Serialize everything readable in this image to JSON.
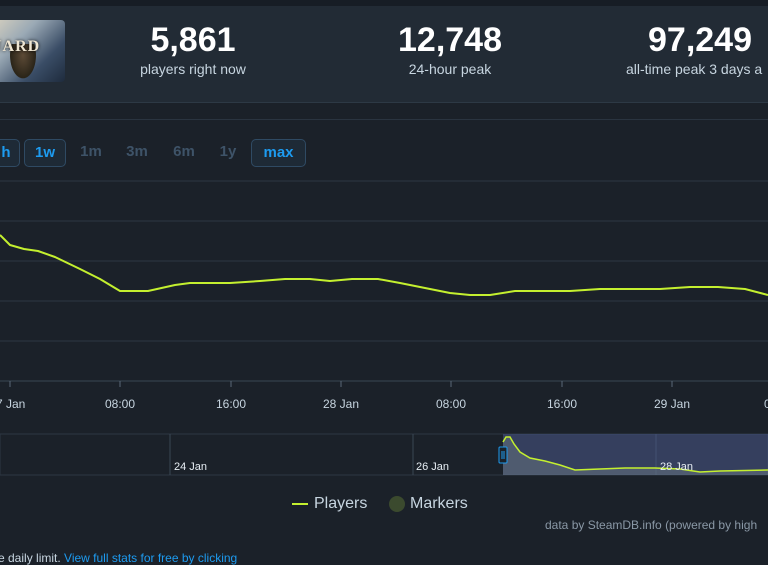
{
  "game": {
    "logo_text": "UARD"
  },
  "stats": [
    {
      "value": "5,861",
      "label": "players right now"
    },
    {
      "value": "12,748",
      "label": "24-hour peak"
    },
    {
      "value": "97,249",
      "label": "all-time peak 3 days a"
    }
  ],
  "zoom_buttons": [
    {
      "label": "h",
      "active": true
    },
    {
      "label": "1w",
      "active": true
    },
    {
      "label": "1m",
      "active": false
    },
    {
      "label": "3m",
      "active": false
    },
    {
      "label": "6m",
      "active": false
    },
    {
      "label": "1y",
      "active": false
    },
    {
      "label": "max",
      "active": true
    }
  ],
  "chart_data": {
    "type": "line",
    "x_ticks": [
      "7 Jan",
      "08:00",
      "16:00",
      "28 Jan",
      "08:00",
      "16:00",
      "29 Jan",
      "0"
    ],
    "series": [
      {
        "name": "Players",
        "color": "#c4f02f",
        "values": [
          [
            0,
            0.73
          ],
          [
            10,
            0.68
          ],
          [
            24,
            0.66
          ],
          [
            38,
            0.65
          ],
          [
            55,
            0.62
          ],
          [
            80,
            0.56
          ],
          [
            100,
            0.51
          ],
          [
            120,
            0.45
          ],
          [
            148,
            0.45
          ],
          [
            175,
            0.48
          ],
          [
            190,
            0.49
          ],
          [
            210,
            0.49
          ],
          [
            230,
            0.49
          ],
          [
            260,
            0.5
          ],
          [
            285,
            0.51
          ],
          [
            310,
            0.51
          ],
          [
            330,
            0.5
          ],
          [
            352,
            0.51
          ],
          [
            378,
            0.51
          ],
          [
            400,
            0.49
          ],
          [
            430,
            0.46
          ],
          [
            450,
            0.44
          ],
          [
            470,
            0.43
          ],
          [
            490,
            0.43
          ],
          [
            515,
            0.45
          ],
          [
            540,
            0.45
          ],
          [
            570,
            0.45
          ],
          [
            600,
            0.46
          ],
          [
            630,
            0.46
          ],
          [
            660,
            0.46
          ],
          [
            690,
            0.47
          ],
          [
            718,
            0.47
          ],
          [
            745,
            0.46
          ],
          [
            768,
            0.43
          ]
        ]
      }
    ],
    "navigator_ticks": [
      "24 Jan",
      "26 Jan",
      "28 Jan"
    ]
  },
  "legend": {
    "players": "Players",
    "markers": "Markers"
  },
  "credits": "data by SteamDB.info (powered by high",
  "footer": {
    "prefix": "e daily limit. ",
    "link": "View full stats for free by clicking"
  }
}
